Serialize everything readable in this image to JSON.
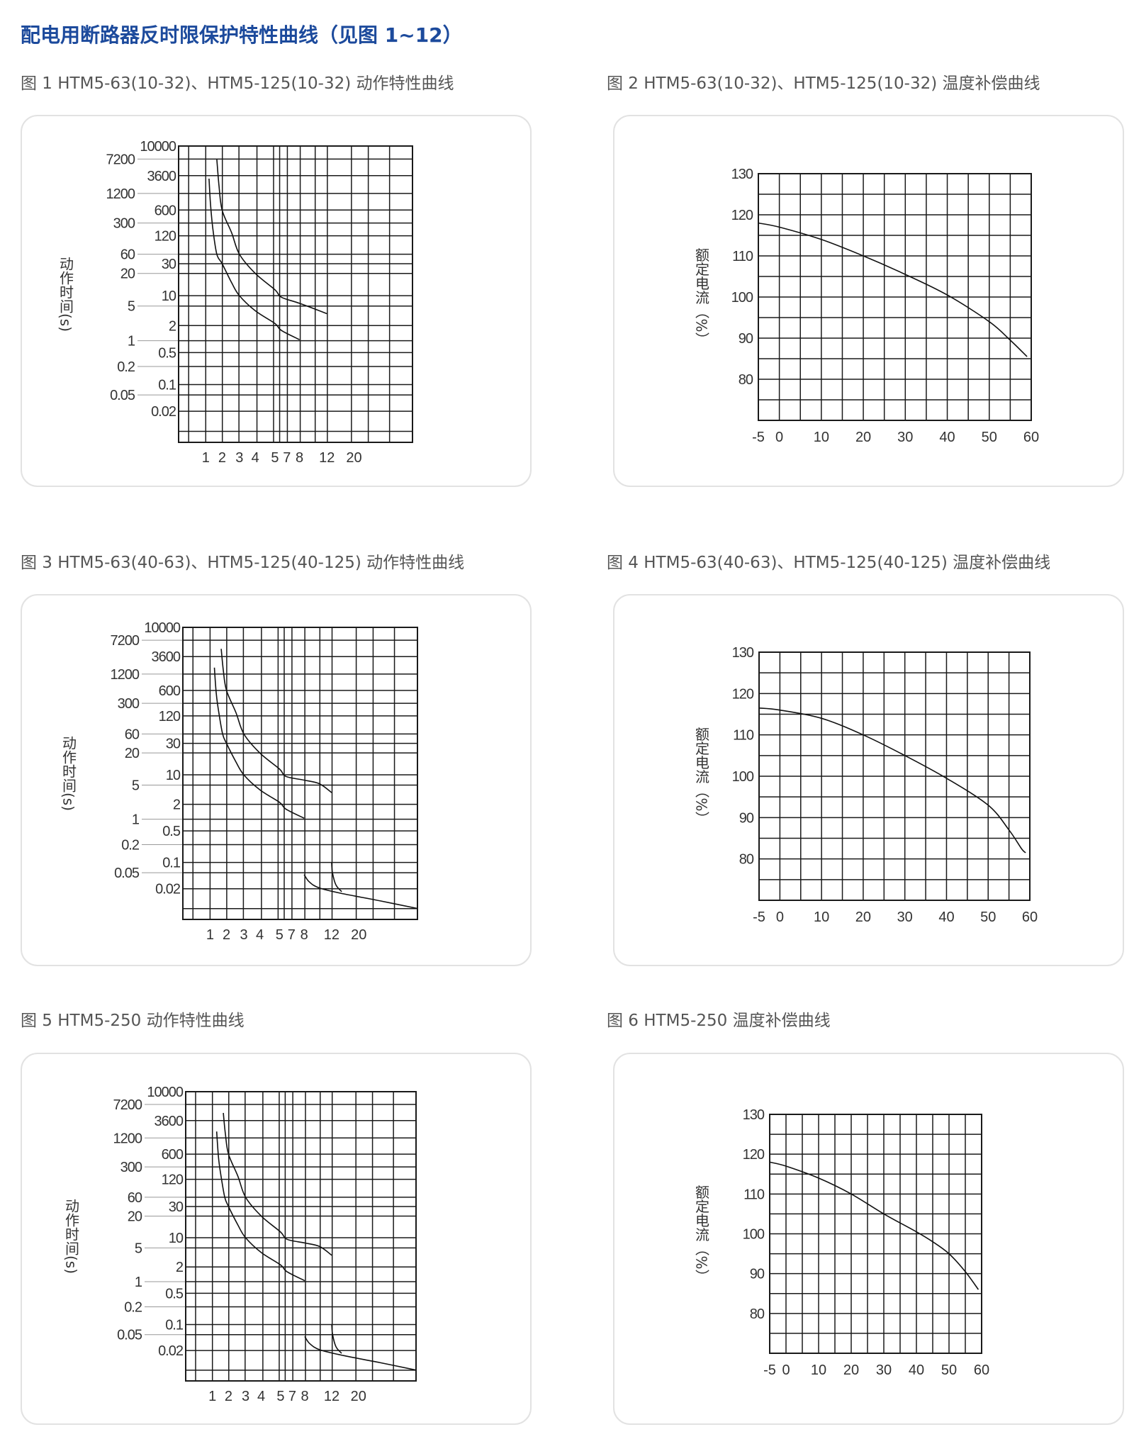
{
  "page_title": "配电用断路器反时限保护特性曲线（见图 1~12）",
  "chart_data": [
    {
      "type": "line",
      "title": "图 1 HTM5-63(10-32)、HTM5-125(10-32) 动作特性曲线",
      "ylabel": "动作时间(s)",
      "xlabel": "",
      "yscale": "log",
      "x_ticks": [
        "1",
        "2",
        "3",
        "4",
        "5",
        "7",
        "8",
        "12",
        "20"
      ],
      "y_ticks": [
        "10000",
        "7200",
        "3600",
        "1200",
        "600",
        "300",
        "120",
        "60",
        "30",
        "20",
        "10",
        "5",
        "2",
        "1",
        "0.5",
        "0.2",
        "0.1",
        "0.05",
        "0.02"
      ],
      "grid": true,
      "series": [
        {
          "name": "lower-curve",
          "points": [
            [
              1.15,
              3000
            ],
            [
              1.22,
              800
            ],
            [
              1.35,
              200
            ],
            [
              1.6,
              60
            ],
            [
              2,
              30
            ],
            [
              2.5,
              15
            ],
            [
              3,
              10
            ],
            [
              4,
              4
            ],
            [
              5,
              2.2
            ],
            [
              6,
              1.6
            ],
            [
              8,
              1.05
            ]
          ]
        },
        {
          "name": "upper-curve",
          "points": [
            [
              1.6,
              7200
            ],
            [
              1.75,
              2000
            ],
            [
              2,
              600
            ],
            [
              2.5,
              150
            ],
            [
              3,
              60
            ],
            [
              4,
              20
            ],
            [
              5,
              12
            ],
            [
              6,
              9
            ],
            [
              8,
              6
            ],
            [
              12,
              3.5
            ]
          ]
        }
      ]
    },
    {
      "type": "line",
      "title": "图 2 HTM5-63(10-32)、HTM5-125(10-32) 温度补偿曲线",
      "ylabel": "额定电流（%）",
      "xlabel": "",
      "x_ticks": [
        "-5",
        "0",
        "10",
        "20",
        "30",
        "40",
        "50",
        "60"
      ],
      "y_ticks": [
        "130",
        "120",
        "110",
        "100",
        "90",
        "80"
      ],
      "xlim": [
        -5,
        60
      ],
      "ylim": [
        70,
        130
      ],
      "grid": true,
      "series": [
        {
          "name": "compensation-curve",
          "points": [
            [
              -5,
              118
            ],
            [
              0,
              117
            ],
            [
              10,
              114
            ],
            [
              20,
              110
            ],
            [
              30,
              105.5
            ],
            [
              40,
              100.5
            ],
            [
              50,
              94
            ],
            [
              55,
              89.5
            ],
            [
              59,
              85.5
            ]
          ]
        }
      ]
    },
    {
      "type": "line",
      "title": "图 3 HTM5-63(40-63)、HTM5-125(40-125) 动作特性曲线",
      "ylabel": "动作时间(s)",
      "xlabel": "",
      "yscale": "log",
      "x_ticks": [
        "1",
        "2",
        "3",
        "4",
        "5",
        "7",
        "8",
        "12",
        "20"
      ],
      "y_ticks": [
        "10000",
        "7200",
        "3600",
        "1200",
        "600",
        "300",
        "120",
        "60",
        "30",
        "20",
        "10",
        "5",
        "2",
        "1",
        "0.5",
        "0.2",
        "0.1",
        "0.05",
        "0.02"
      ],
      "grid": true,
      "series": [
        {
          "name": "lower-curve",
          "points": [
            [
              1.2,
              1800
            ],
            [
              1.3,
              500
            ],
            [
              1.45,
              150
            ],
            [
              1.7,
              60
            ],
            [
              2,
              30
            ],
            [
              2.5,
              15
            ],
            [
              3,
              10
            ],
            [
              4,
              4
            ],
            [
              5,
              2.2
            ],
            [
              6,
              1.6
            ],
            [
              8,
              1.05
            ]
          ]
        },
        {
          "name": "upper-curve",
          "points": [
            [
              1.6,
              5000
            ],
            [
              1.75,
              1500
            ],
            [
              2,
              600
            ],
            [
              2.5,
              150
            ],
            [
              3,
              60
            ],
            [
              4,
              20
            ],
            [
              5,
              12
            ],
            [
              6,
              9
            ],
            [
              8,
              7
            ],
            [
              10,
              5.5
            ],
            [
              12,
              3.5
            ]
          ]
        },
        {
          "name": "instant-curve-1",
          "points": [
            [
              8,
              0.045
            ],
            [
              8.6,
              0.03
            ],
            [
              10,
              0.021
            ],
            [
              15,
              0.015
            ],
            [
              30,
              0.01
            ],
            [
              60,
              0.0065
            ]
          ]
        },
        {
          "name": "instant-curve-2",
          "points": [
            [
              12,
              0.1
            ],
            [
              12.2,
              0.05
            ],
            [
              13,
              0.025
            ],
            [
              14.5,
              0.017
            ]
          ]
        }
      ]
    },
    {
      "type": "line",
      "title": "图 4 HTM5-63(40-63)、HTM5-125(40-125) 温度补偿曲线",
      "ylabel": "额定电流（%）",
      "xlabel": "",
      "x_ticks": [
        "-5",
        "0",
        "10",
        "20",
        "30",
        "40",
        "50",
        "60"
      ],
      "y_ticks": [
        "130",
        "120",
        "110",
        "100",
        "90",
        "80"
      ],
      "xlim": [
        -5,
        60
      ],
      "ylim": [
        70,
        130
      ],
      "grid": true,
      "series": [
        {
          "name": "compensation-curve",
          "points": [
            [
              -5,
              116.5
            ],
            [
              0,
              116
            ],
            [
              10,
              114
            ],
            [
              20,
              110
            ],
            [
              30,
              105
            ],
            [
              40,
              99.5
            ],
            [
              50,
              93
            ],
            [
              55,
              87
            ],
            [
              58,
              82.5
            ],
            [
              59,
              81.5
            ]
          ]
        }
      ]
    },
    {
      "type": "line",
      "title": "图 5 HTM5-250 动作特性曲线",
      "ylabel": "动作时间(s)",
      "xlabel": "",
      "yscale": "log",
      "x_ticks": [
        "1",
        "2",
        "3",
        "4",
        "5",
        "7",
        "8",
        "12",
        "20"
      ],
      "y_ticks": [
        "10000",
        "7200",
        "3600",
        "1200",
        "600",
        "300",
        "120",
        "60",
        "30",
        "20",
        "10",
        "5",
        "2",
        "1",
        "0.5",
        "0.2",
        "0.1",
        "0.05",
        "0.02"
      ],
      "grid": true,
      "series": [
        {
          "name": "lower-curve",
          "points": [
            [
              1.2,
              1800
            ],
            [
              1.3,
              500
            ],
            [
              1.45,
              150
            ],
            [
              1.7,
              60
            ],
            [
              2,
              30
            ],
            [
              2.5,
              15
            ],
            [
              3,
              10
            ],
            [
              4,
              4
            ],
            [
              5,
              2.2
            ],
            [
              6,
              1.6
            ],
            [
              8,
              1.05
            ]
          ]
        },
        {
          "name": "upper-curve",
          "points": [
            [
              1.6,
              5000
            ],
            [
              1.75,
              1500
            ],
            [
              2,
              600
            ],
            [
              2.5,
              150
            ],
            [
              3,
              60
            ],
            [
              4,
              20
            ],
            [
              5,
              12
            ],
            [
              6,
              9
            ],
            [
              8,
              7
            ],
            [
              10,
              5.5
            ],
            [
              12,
              3.5
            ]
          ]
        },
        {
          "name": "instant-curve-1",
          "points": [
            [
              8,
              0.045
            ],
            [
              8.6,
              0.03
            ],
            [
              10,
              0.021
            ],
            [
              15,
              0.015
            ],
            [
              30,
              0.01
            ],
            [
              60,
              0.0065
            ]
          ]
        },
        {
          "name": "instant-curve-2",
          "points": [
            [
              12,
              0.1
            ],
            [
              12.2,
              0.05
            ],
            [
              13,
              0.025
            ],
            [
              14.5,
              0.017
            ]
          ]
        }
      ]
    },
    {
      "type": "line",
      "title": "图 6 HTM5-250 温度补偿曲线",
      "ylabel": "额定电流（%）",
      "xlabel": "",
      "x_ticks": [
        "-5",
        "0",
        "10",
        "20",
        "30",
        "40",
        "50",
        "60"
      ],
      "y_ticks": [
        "130",
        "120",
        "110",
        "100",
        "90",
        "80"
      ],
      "xlim": [
        -5,
        60
      ],
      "ylim": [
        70,
        130
      ],
      "grid": true,
      "series": [
        {
          "name": "compensation-curve",
          "points": [
            [
              -5,
              118
            ],
            [
              0,
              117
            ],
            [
              10,
              114
            ],
            [
              20,
              110
            ],
            [
              30,
              105
            ],
            [
              40,
              100.5
            ],
            [
              45,
              98
            ],
            [
              50,
              95
            ],
            [
              55,
              90.5
            ],
            [
              59,
              86
            ]
          ]
        }
      ]
    }
  ]
}
